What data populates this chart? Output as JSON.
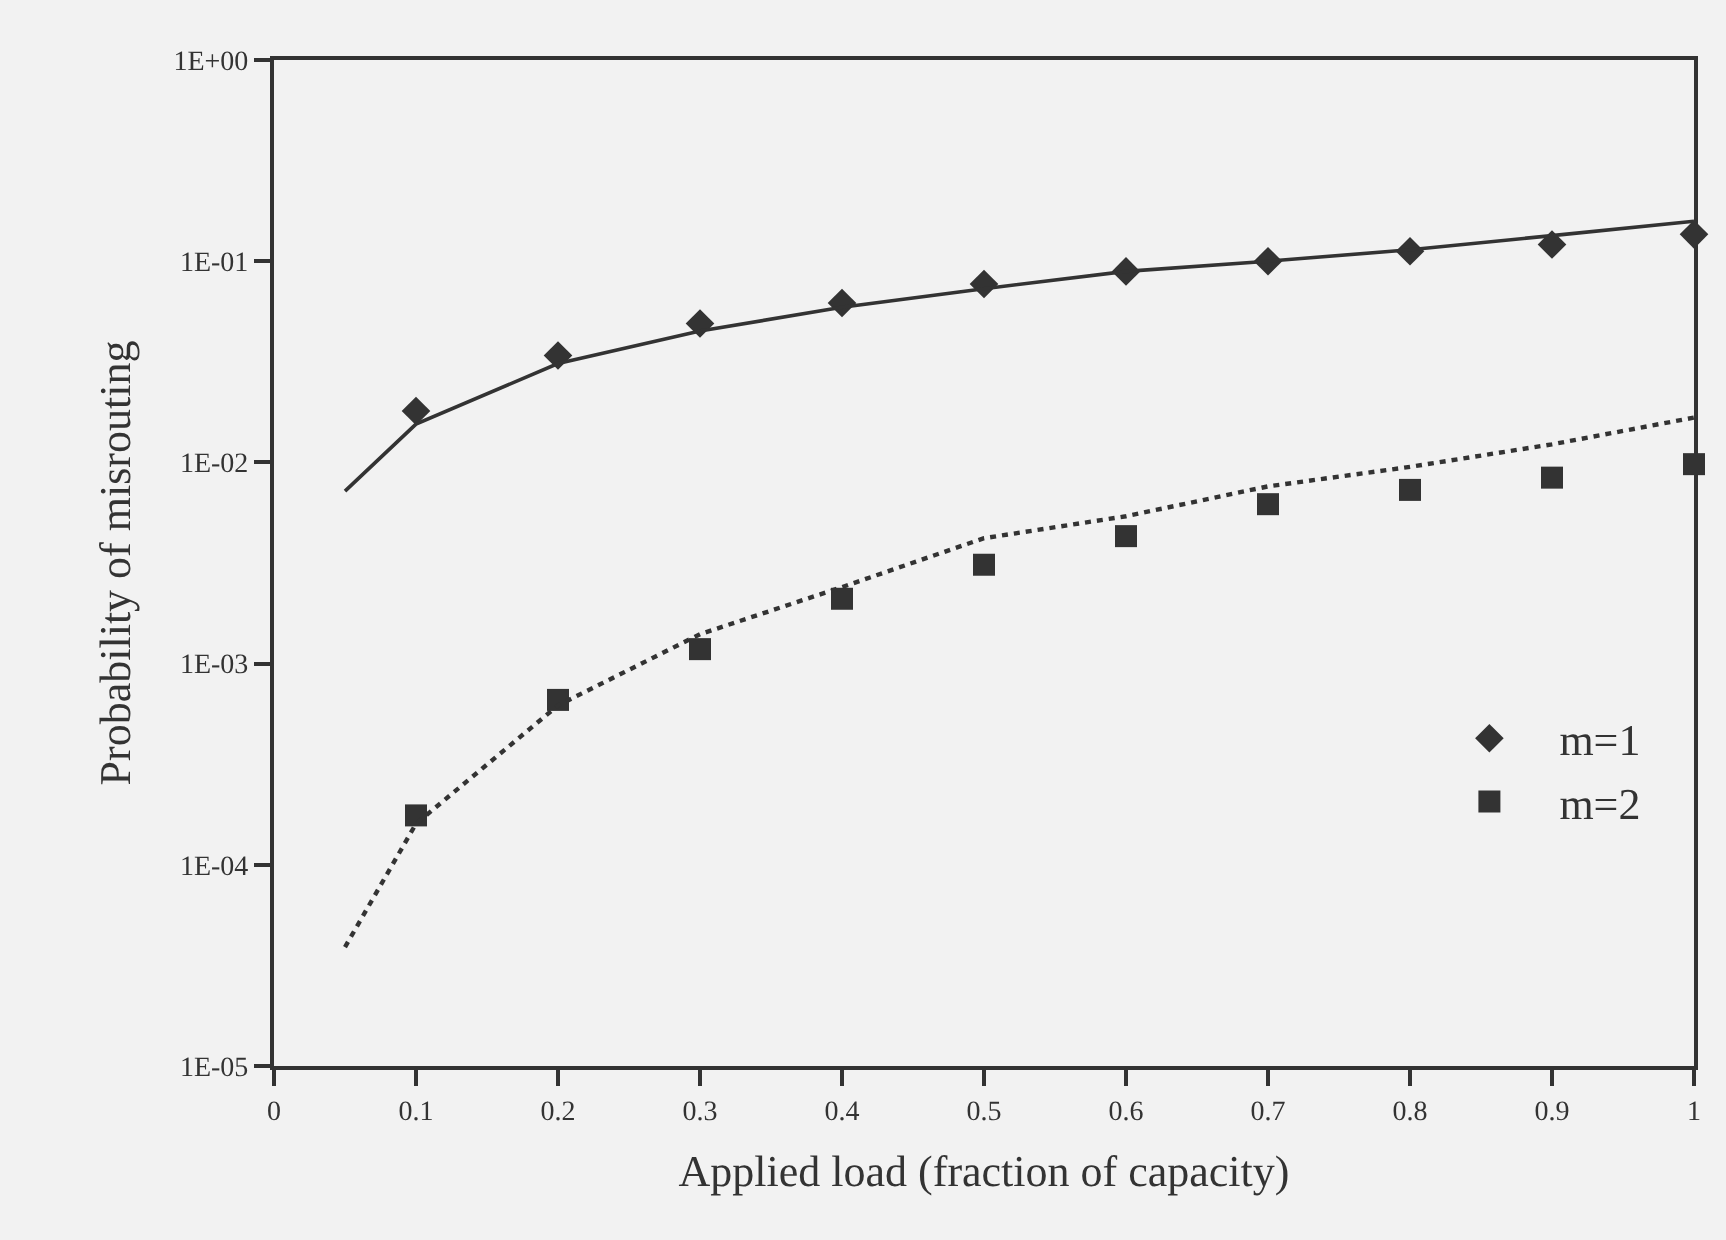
{
  "chart_data": {
    "type": "scatter",
    "xlabel": "Applied load (fraction of capacity)",
    "ylabel": "Probability of misrouting",
    "xlim": [
      0,
      1
    ],
    "xticks": [
      0,
      0.1,
      0.2,
      0.3,
      0.4,
      0.5,
      0.6,
      0.7,
      0.8,
      0.9,
      1
    ],
    "ylim": [
      1e-05,
      1
    ],
    "log": "y",
    "yticks": [
      {
        "value": 1,
        "label": "1E+00"
      },
      {
        "value": 0.1,
        "label": "1E-01"
      },
      {
        "value": 0.01,
        "label": "1E-02"
      },
      {
        "value": 0.001,
        "label": "1E-03"
      },
      {
        "value": 0.0001,
        "label": "1E-04"
      },
      {
        "value": 1e-05,
        "label": "1E-05"
      }
    ],
    "grid": false,
    "legend": "bottom right",
    "series": [
      {
        "name": "m=1",
        "marker": "diamond",
        "color": "#333333",
        "x": [
          0.1,
          0.2,
          0.3,
          0.4,
          0.5,
          0.6,
          0.7,
          0.8,
          0.9,
          1
        ],
        "values": [
          0.018,
          0.034,
          0.049,
          0.062,
          0.077,
          0.089,
          0.1,
          0.112,
          0.121,
          0.136
        ]
      },
      {
        "type": "line",
        "line_style": "solid",
        "marker": "none",
        "color": "#333333",
        "x": [
          0.05,
          0.1,
          0.2,
          0.3,
          0.4,
          0.5,
          0.6,
          0.7,
          0.8,
          0.9,
          1
        ],
        "values": [
          0.0072,
          0.0155,
          0.031,
          0.045,
          0.059,
          0.073,
          0.089,
          0.1,
          0.114,
          0.134,
          0.158
        ]
      },
      {
        "name": "m=2",
        "marker": "square",
        "color": "#333333",
        "x": [
          0.1,
          0.2,
          0.3,
          0.4,
          0.5,
          0.6,
          0.7,
          0.8,
          0.9,
          1
        ],
        "values": [
          0.000176,
          0.00066,
          0.00118,
          0.0021,
          0.0031,
          0.0043,
          0.0062,
          0.0073,
          0.0084,
          0.0098
        ]
      },
      {
        "type": "line",
        "line_style": "dotted",
        "marker": "none",
        "color": "#333333",
        "x": [
          0.05,
          0.1,
          0.2,
          0.3,
          0.4,
          0.5,
          0.6,
          0.7,
          0.8,
          0.9,
          1
        ],
        "values": [
          3.9e-05,
          0.00016,
          0.00062,
          0.0014,
          0.0024,
          0.0042,
          0.0054,
          0.0076,
          0.0095,
          0.0123,
          0.0167
        ]
      }
    ]
  }
}
